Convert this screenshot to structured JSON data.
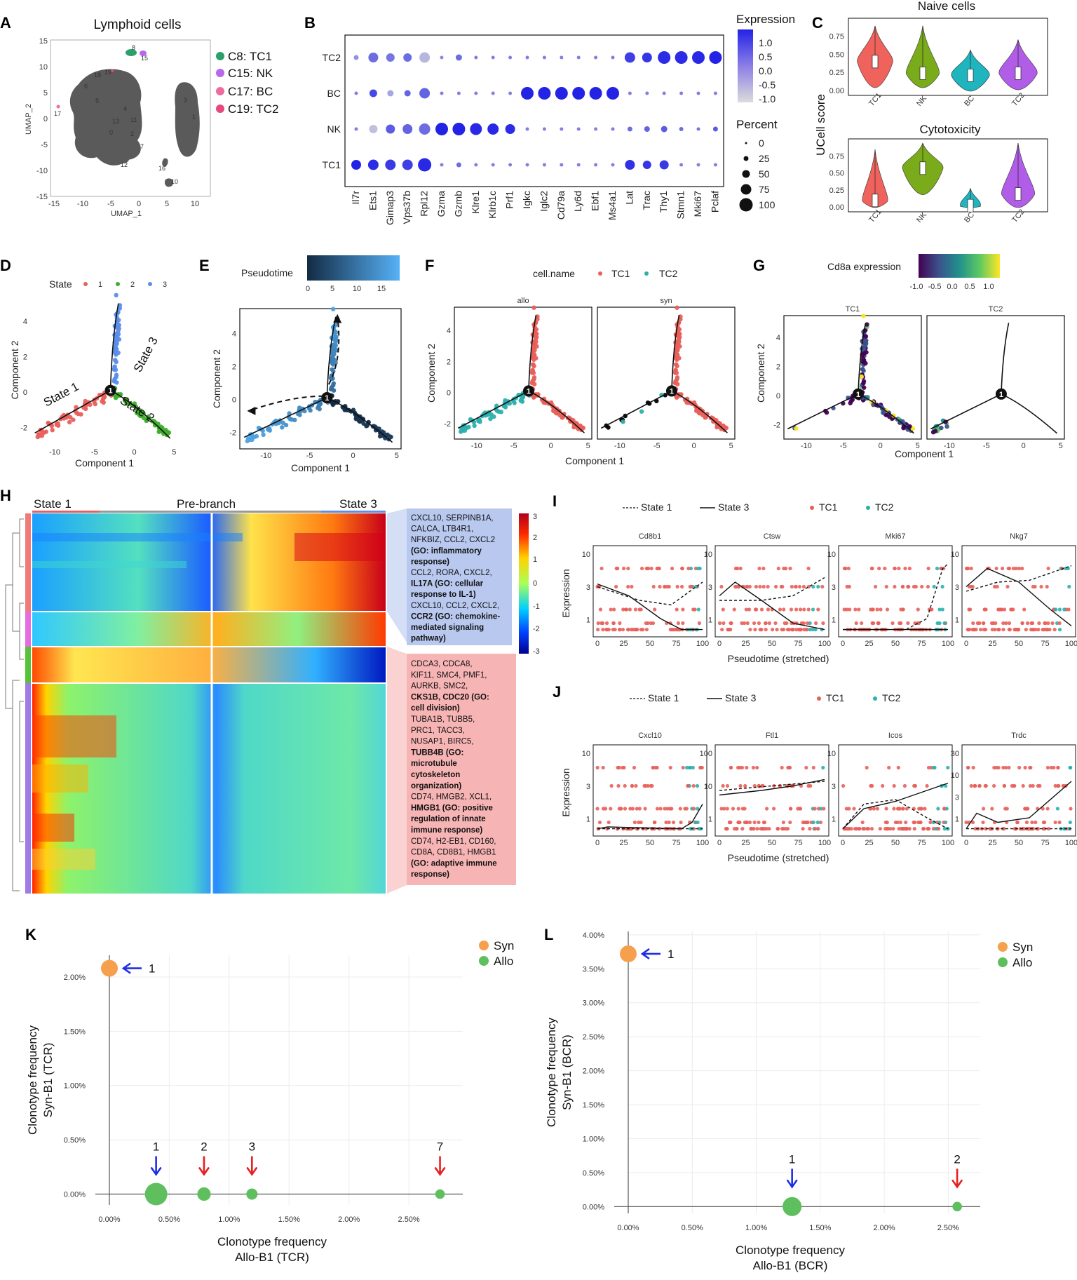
{
  "panel_labels": [
    "A",
    "B",
    "C",
    "D",
    "E",
    "F",
    "G",
    "H",
    "I",
    "J",
    "K",
    "L"
  ],
  "colors": {
    "tc1": "#e36a6a",
    "nk": "#b768ec",
    "bc": "#f06aa0",
    "tc2": "#e8497d",
    "state1": "#e8605b",
    "state2": "#3fae2c",
    "state3": "#5b8ee8",
    "violin_tc1": "#f0625c",
    "violin_nk": "#7aab1a",
    "violin_bc": "#1eb5bf",
    "violin_tc2": "#b15de8",
    "syn": "#f6a04d",
    "allo": "#5fbf5f",
    "arrow_blue": "#1f2ee6",
    "arrow_red": "#e61f1f",
    "dot_high": "#2a2ae6",
    "dot_low": "#d0d0d0",
    "teal": "#2bb0ad",
    "c8_green": "#2aa06a"
  },
  "panelA": {
    "title": "Lymphoid cells",
    "xlabel": "UMAP_1",
    "ylabel": "UMAP_2",
    "xticks": [
      "-15",
      "-10",
      "-5",
      "0",
      "5",
      "10"
    ],
    "yticks": [
      "15",
      "10",
      "5",
      "0",
      "-5",
      "-10",
      "-15"
    ],
    "cluster_numbers": [
      "8",
      "15",
      "19",
      "18",
      "6",
      "5",
      "4",
      "3",
      "1",
      "2",
      "7",
      "0",
      "11",
      "13",
      "12",
      "16",
      "10",
      "17"
    ],
    "legend": [
      {
        "label": "C8: TC1",
        "color": "#2aa06a"
      },
      {
        "label": "C15: NK",
        "color": "#b768ec"
      },
      {
        "label": "C17: BC",
        "color": "#f06aa0"
      },
      {
        "label": "C19: TC2",
        "color": "#e8497d"
      }
    ]
  },
  "panelB": {
    "rows": [
      "TC2",
      "BC",
      "NK",
      "TC1"
    ],
    "genes": [
      "Il7r",
      "Ets1",
      "Gimap3",
      "Vps37b",
      "Rpl12",
      "Gzma",
      "Gzmb",
      "Klre1",
      "Klrb1c",
      "Prf1",
      "Igkc",
      "Iglc2",
      "Cd79a",
      "Ly6d",
      "Ebf1",
      "Ms4a1",
      "Lat",
      "Trac",
      "Thy1",
      "Stmn1",
      "Mki67",
      "Pclaf"
    ],
    "expression_legend_title": "Expression",
    "expression_ticks": [
      "1.0",
      "0.5",
      "0.0",
      "-0.5",
      "-1.0"
    ],
    "percent_legend_title": "Percent",
    "percent_ticks": [
      "0",
      "25",
      "50",
      "75",
      "100"
    ]
  },
  "panelC": {
    "ylabel": "UCell score",
    "plots": [
      {
        "title": "Naive cells",
        "yticks": [
          "0.75",
          "0.50",
          "0.25",
          "0.00"
        ]
      },
      {
        "title": "Cytotoxicity",
        "yticks": [
          "0.75",
          "0.50",
          "0.25",
          "0.00"
        ]
      }
    ],
    "groups": [
      "TC1",
      "NK",
      "BC",
      "TC2"
    ]
  },
  "panelD": {
    "legend_title": "State",
    "legend_items": [
      "1",
      "2",
      "3"
    ],
    "labels": [
      "State 1",
      "State 2",
      "State 3"
    ],
    "xlabel": "Component 1",
    "ylabel": "Component 2",
    "xticks": [
      "-10",
      "-5",
      "0",
      "5"
    ],
    "yticks": [
      "4",
      "2",
      "0",
      "-2"
    ],
    "node": "1"
  },
  "panelE": {
    "legend_title": "Pseudotime",
    "legend_ticks": [
      "0",
      "5",
      "10",
      "15"
    ],
    "xlabel": "Component 1",
    "ylabel": "Component 2",
    "xticks": [
      "-10",
      "-5",
      "0",
      "5"
    ],
    "yticks": [
      "4",
      "2",
      "0",
      "-2"
    ],
    "node": "1"
  },
  "panelF": {
    "legend_title": "cell.name",
    "legend_items": [
      "TC1",
      "TC2"
    ],
    "facets": [
      "allo",
      "syn"
    ],
    "xlabel": "Component 1",
    "ylabel": "Component 2",
    "xticks": [
      "-10",
      "-5",
      "0",
      "5"
    ],
    "yticks": [
      "4",
      "2",
      "0",
      "-2"
    ],
    "node": "1"
  },
  "panelG": {
    "legend_title": "Cd8a expression",
    "legend_ticks": [
      "-1.0",
      "-0.5",
      "0.0",
      "0.5",
      "1.0"
    ],
    "facets": [
      "TC1",
      "TC2"
    ],
    "xlabel": "Component 1",
    "ylabel": "Component 2",
    "xticks": [
      "-10",
      "-5",
      "0",
      "5"
    ],
    "yticks": [
      "4",
      "2",
      "0",
      "-2"
    ],
    "node": "1"
  },
  "panelH": {
    "header": [
      "State 1",
      "Pre-branch",
      "State 3"
    ],
    "scale_ticks": [
      "3",
      "2",
      "1",
      "0",
      "-1",
      "-2",
      "-3"
    ],
    "box_blue": [
      {
        "text": "CXCL10, SERPINB1A,",
        "bold": false
      },
      {
        "text": "CALCA, LTB4R1,",
        "bold": false
      },
      {
        "text": "NFKBIZ, CCL2, CXCL2",
        "bold": false
      },
      {
        "text": "(GO: inflammatory",
        "bold": true
      },
      {
        "text": "response)",
        "bold": true
      },
      {
        "text": "CCL2, RORA, CXCL2,",
        "bold": false
      },
      {
        "text": "IL17A (GO: cellular",
        "bold": true
      },
      {
        "text": "response to IL-1)",
        "bold": true
      },
      {
        "text": "CXCL10, CCL2, CXCL2,",
        "bold": false
      },
      {
        "text": "CCR2 (GO: chemokine-",
        "bold": true
      },
      {
        "text": "mediated signaling",
        "bold": true
      },
      {
        "text": "pathway)",
        "bold": true
      }
    ],
    "box_red": [
      {
        "text": "CDCA3, CDCA8,",
        "bold": false
      },
      {
        "text": "KIF11, SMC4, PMF1,",
        "bold": false
      },
      {
        "text": "AURKB, SMC2,",
        "bold": false
      },
      {
        "text": "CKS1B, CDC20 (GO:",
        "bold": true
      },
      {
        "text": "cell division)",
        "bold": true
      },
      {
        "text": "TUBA1B, TUBB5,",
        "bold": false
      },
      {
        "text": "PRC1, TACC3,",
        "bold": false
      },
      {
        "text": "NUSAP1, BIRC5,",
        "bold": false
      },
      {
        "text": "TUBB4B (GO:",
        "bold": true
      },
      {
        "text": "microtubule",
        "bold": true
      },
      {
        "text": "cytoskeleton",
        "bold": true
      },
      {
        "text": "organization)",
        "bold": true
      },
      {
        "text": "CD74, HMGB2, XCL1,",
        "bold": false
      },
      {
        "text": "HMGB1 (GO: positive",
        "bold": true
      },
      {
        "text": "regulation of innate",
        "bold": true
      },
      {
        "text": "immune response)",
        "bold": true
      },
      {
        "text": "CD74, H2-EB1, CD160,",
        "bold": false
      },
      {
        "text": "CD8A, CD8B1, HMGB1",
        "bold": false
      },
      {
        "text": "(GO: adaptive immune",
        "bold": true
      },
      {
        "text": "response)",
        "bold": true
      }
    ]
  },
  "panelI": {
    "legend": [
      "State 1",
      "State 3",
      "TC1",
      "TC2"
    ],
    "genes": [
      "Cd8b1",
      "Ctsw",
      "Mki67",
      "Nkg7"
    ],
    "xlabel": "Pseudotime (stretched)",
    "ylabel": "Expression",
    "xticks": [
      "0",
      "25",
      "50",
      "75",
      "100"
    ],
    "yticks": [
      "10",
      "3",
      "1"
    ]
  },
  "panelJ": {
    "legend": [
      "State 1",
      "State 3",
      "TC1",
      "TC2"
    ],
    "genes": [
      "Cxcl10",
      "Ftl1",
      "Icos",
      "Trdc"
    ],
    "xlabel": "Pseudotime (stretched)",
    "ylabel": "Expression",
    "xticks": [
      "0",
      "25",
      "50",
      "75",
      "100"
    ],
    "yticks_by_gene": [
      [
        "10",
        "3",
        "1"
      ],
      [
        "100",
        "10",
        "1"
      ],
      [
        "10",
        "3",
        "1"
      ],
      [
        "30",
        "10",
        "3",
        "1"
      ]
    ]
  },
  "chart_data": [
    {
      "id": "K",
      "type": "scatter",
      "xlabel": "Clonotype frequency\nAllo-B1 (TCR)",
      "ylabel": "Clonotype frequency\nSyn-B1 (TCR)",
      "xlim": [
        0,
        2.95
      ],
      "ylim": [
        -0.1,
        2.2
      ],
      "xticks": [
        "0.00%",
        "0.50%",
        "1.00%",
        "1.50%",
        "2.00%",
        "2.50%"
      ],
      "yticks": [
        "0.00%",
        "0.50%",
        "1.00%",
        "1.50%",
        "2.00%"
      ],
      "legend": [
        "Syn",
        "Allo"
      ],
      "series": [
        {
          "name": "Syn",
          "points": [
            {
              "x": 0.0,
              "y": 2.08,
              "size": 1.0,
              "label": "1"
            }
          ]
        },
        {
          "name": "Allo",
          "points": [
            {
              "x": 0.39,
              "y": 0.0,
              "size": 1.5,
              "label": "1"
            },
            {
              "x": 0.79,
              "y": 0.0,
              "size": 0.7,
              "label": "2"
            },
            {
              "x": 1.19,
              "y": 0.0,
              "size": 0.5,
              "label": "3"
            },
            {
              "x": 2.76,
              "y": 0.0,
              "size": 0.35,
              "label": "7"
            }
          ]
        }
      ]
    },
    {
      "id": "L",
      "type": "scatter",
      "xlabel": "Clonotype frequency\nAllo-B1 (BCR)",
      "ylabel": "Clonotype frequency\nSyn-B1 (BCR)",
      "xlim": [
        0,
        2.75
      ],
      "ylim": [
        -0.1,
        4.05
      ],
      "xticks": [
        "0.00%",
        "0.50%",
        "1.00%",
        "1.50%",
        "2.00%",
        "2.50%"
      ],
      "yticks": [
        "0.00%",
        "0.50%",
        "1.00%",
        "1.50%",
        "2.00%",
        "2.50%",
        "3.00%",
        "3.50%",
        "4.00%"
      ],
      "legend": [
        "Syn",
        "Allo"
      ],
      "series": [
        {
          "name": "Syn",
          "points": [
            {
              "x": 0.0,
              "y": 3.72,
              "size": 1.0,
              "label": "1"
            }
          ]
        },
        {
          "name": "Allo",
          "points": [
            {
              "x": 1.28,
              "y": 0.0,
              "size": 1.2,
              "label": "1"
            },
            {
              "x": 2.57,
              "y": 0.0,
              "size": 0.35,
              "label": "2"
            }
          ]
        }
      ]
    }
  ]
}
